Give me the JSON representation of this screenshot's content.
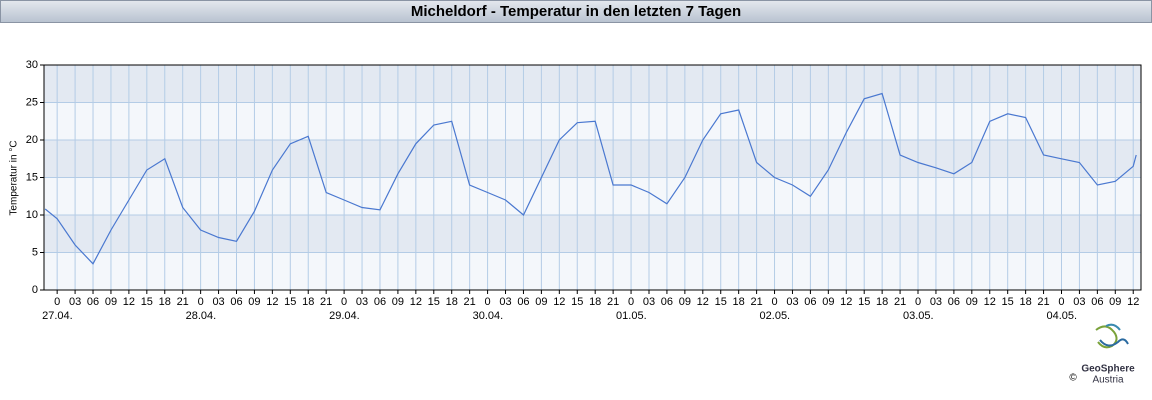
{
  "chart_data": {
    "type": "line",
    "title": "Micheldorf - Temperatur in den letzten 7 Tagen",
    "y_label": "Temperatur in °C",
    "brand": [
      "GeoSphere",
      "Austria"
    ],
    "copyright": "©",
    "xlim": [
      -2.2,
      181.3
    ],
    "ylim": [
      0,
      30
    ],
    "yticks": [
      0,
      5,
      10,
      15,
      20,
      25,
      30
    ],
    "xticks": [
      0,
      {
        "value": 3,
        "label": "03"
      },
      {
        "value": 6,
        "label": "06"
      },
      {
        "value": 9,
        "label": "09"
      },
      12,
      15,
      18,
      21,
      {
        "value": 24,
        "label": "0"
      },
      {
        "value": 27,
        "label": "03"
      },
      {
        "value": 30,
        "label": "06"
      },
      {
        "value": 33,
        "label": "09"
      },
      {
        "value": 36,
        "label": "12"
      },
      {
        "value": 39,
        "label": "15"
      },
      {
        "value": 42,
        "label": "18"
      },
      {
        "value": 45,
        "label": "21"
      },
      {
        "value": 48,
        "label": "0"
      },
      {
        "value": 51,
        "label": "03"
      },
      {
        "value": 54,
        "label": "06"
      },
      {
        "value": 57,
        "label": "09"
      },
      {
        "value": 60,
        "label": "12"
      },
      {
        "value": 63,
        "label": "15"
      },
      {
        "value": 66,
        "label": "18"
      },
      {
        "value": 69,
        "label": "21"
      },
      {
        "value": 72,
        "label": "0"
      },
      {
        "value": 75,
        "label": "03"
      },
      {
        "value": 78,
        "label": "06"
      },
      {
        "value": 81,
        "label": "09"
      },
      {
        "value": 84,
        "label": "12"
      },
      {
        "value": 87,
        "label": "15"
      },
      {
        "value": 90,
        "label": "18"
      },
      {
        "value": 93,
        "label": "21"
      },
      {
        "value": 96,
        "label": "0"
      },
      {
        "value": 99,
        "label": "03"
      },
      {
        "value": 102,
        "label": "06"
      },
      {
        "value": 105,
        "label": "09"
      },
      {
        "value": 108,
        "label": "12"
      },
      {
        "value": 111,
        "label": "15"
      },
      {
        "value": 114,
        "label": "18"
      },
      {
        "value": 117,
        "label": "21"
      },
      {
        "value": 120,
        "label": "0"
      },
      {
        "value": 123,
        "label": "03"
      },
      {
        "value": 126,
        "label": "06"
      },
      {
        "value": 129,
        "label": "09"
      },
      {
        "value": 132,
        "label": "12"
      },
      {
        "value": 135,
        "label": "15"
      },
      {
        "value": 138,
        "label": "18"
      },
      {
        "value": 141,
        "label": "21"
      },
      {
        "value": 144,
        "label": "0"
      },
      {
        "value": 147,
        "label": "03"
      },
      {
        "value": 150,
        "label": "06"
      },
      {
        "value": 153,
        "label": "09"
      },
      {
        "value": 156,
        "label": "12"
      },
      {
        "value": 159,
        "label": "15"
      },
      {
        "value": 162,
        "label": "18"
      },
      {
        "value": 165,
        "label": "21"
      },
      {
        "value": 168,
        "label": "0"
      },
      {
        "value": 171,
        "label": "03"
      },
      {
        "value": 174,
        "label": "06"
      },
      {
        "value": 177,
        "label": "09"
      },
      {
        "value": 180,
        "label": "12"
      }
    ],
    "date_labels": [
      {
        "value": 0,
        "label": "27.04."
      },
      {
        "value": 24,
        "label": "28.04."
      },
      {
        "value": 48,
        "label": "29.04."
      },
      {
        "value": 72,
        "label": "30.04."
      },
      {
        "value": 96,
        "label": "01.05."
      },
      {
        "value": 120,
        "label": "02.05."
      },
      {
        "value": 144,
        "label": "03.05."
      },
      {
        "value": 168,
        "label": "04.05."
      }
    ],
    "grid": true,
    "series": [
      {
        "name": "Temperatur",
        "color": "#4a78d0",
        "x": [
          -2,
          0,
          3,
          6,
          9,
          12,
          15,
          18,
          21,
          24,
          27,
          30,
          33,
          36,
          39,
          42,
          45,
          48,
          51,
          54,
          57,
          60,
          63,
          66,
          69,
          72,
          75,
          78,
          81,
          84,
          87,
          90,
          93,
          96,
          99,
          102,
          105,
          108,
          111,
          114,
          117,
          120,
          123,
          126,
          129,
          132,
          135,
          138,
          141,
          144,
          147,
          150,
          153,
          156,
          159,
          162,
          165,
          168,
          171,
          174,
          177,
          180,
          180.5
        ],
        "values": [
          10.8,
          9.5,
          6,
          3.5,
          8,
          12,
          16,
          17.5,
          11,
          8,
          7,
          6.5,
          10.5,
          16,
          19.5,
          20.5,
          13,
          12,
          11,
          10.7,
          15.5,
          19.5,
          22,
          22.5,
          14,
          13,
          12,
          10,
          15,
          20,
          22.3,
          22.5,
          14,
          14,
          13,
          11.5,
          15,
          20,
          23.5,
          24,
          17,
          15,
          14,
          12.5,
          16,
          21,
          25.5,
          26.2,
          18,
          17,
          16.3,
          15.5,
          17,
          22.5,
          23.5,
          23,
          18,
          17.5,
          17,
          14,
          14.5,
          16.5,
          18
        ]
      }
    ]
  }
}
